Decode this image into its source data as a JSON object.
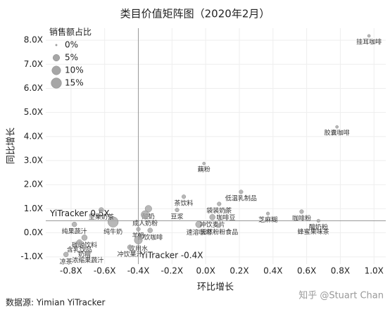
{
  "chart_data": {
    "type": "scatter",
    "title": "类目价值矩阵图（2020年2月）",
    "x_label": "环比增长",
    "y_label": "同比增长",
    "source": "数据源: Yimian YiTracker",
    "watermark": "知乎 @Stuart Chan",
    "xlim": [
      -0.95,
      1.07
    ],
    "ylim": [
      -1.3,
      8.5
    ],
    "xticks": [
      {
        "value": -0.8,
        "label": "-0.8X"
      },
      {
        "value": -0.6,
        "label": "-0.6X"
      },
      {
        "value": -0.4,
        "label": "-0.4X"
      },
      {
        "value": -0.2,
        "label": "-0.2X"
      },
      {
        "value": 0,
        "label": "0.0X"
      },
      {
        "value": 0.2,
        "label": "0.2X"
      },
      {
        "value": 0.4,
        "label": "0.4X"
      },
      {
        "value": 0.6,
        "label": "0.6X"
      },
      {
        "value": 0.8,
        "label": "0.8X"
      },
      {
        "value": 1,
        "label": "1.0X"
      }
    ],
    "yticks": [
      {
        "value": -1,
        "label": "-1.0X"
      },
      {
        "value": 0,
        "label": "0.0X"
      },
      {
        "value": 1,
        "label": "1.0X"
      },
      {
        "value": 2,
        "label": "2.0X"
      },
      {
        "value": 3,
        "label": "3.0X"
      },
      {
        "value": 4,
        "label": "4.0X"
      },
      {
        "value": 5,
        "label": "5.0X"
      },
      {
        "value": 6,
        "label": "6.0X"
      },
      {
        "value": 7,
        "label": "7.0X"
      },
      {
        "value": 8,
        "label": "8.0X"
      }
    ],
    "grid": true,
    "color": "#a6a6a6",
    "size_legend": {
      "title": "销售额占比",
      "sizes": [
        {
          "value": 0,
          "label": "0%"
        },
        {
          "value": 5,
          "label": "5%"
        },
        {
          "value": 10,
          "label": "10%"
        },
        {
          "value": 15,
          "label": "15%"
        }
      ]
    },
    "reference_lines": [
      {
        "axis": "x",
        "value": -0.4,
        "label": "YiTracker -0.4X"
      },
      {
        "axis": "y",
        "value": 0.5,
        "label": "YiTracker 0.5X"
      }
    ],
    "points": [
      {
        "label": "挂耳咖啡",
        "x": 0.97,
        "y": 8.18,
        "size": 0.3
      },
      {
        "label": "胶囊咖啡",
        "x": 0.78,
        "y": 4.4,
        "size": 0.3
      },
      {
        "label": "藕粉",
        "x": -0.01,
        "y": 2.88,
        "size": 0.3
      },
      {
        "label": "低温乳制品",
        "x": 0.21,
        "y": 1.7,
        "size": 1
      },
      {
        "label": "茶饮料",
        "x": -0.13,
        "y": 1.5,
        "size": 1
      },
      {
        "label": "袋装奶茶",
        "x": 0.08,
        "y": 1.2,
        "size": 1
      },
      {
        "label": "芝麻糊",
        "x": 0.37,
        "y": 0.8,
        "size": 0.5
      },
      {
        "label": "咖啡粉",
        "x": 0.57,
        "y": 0.88,
        "size": 1
      },
      {
        "label": "酸奶粉",
        "x": 0.67,
        "y": 0.5,
        "size": 0.5
      },
      {
        "label": "蜂蜜果味茶",
        "x": 0.64,
        "y": 0.3,
        "size": 0.5
      },
      {
        "label": "速溶咖啡",
        "x": -0.04,
        "y": 0.35,
        "size": 5
      },
      {
        "label": "冲饮麦片",
        "x": 0.04,
        "y": 0.65,
        "size": 3
      },
      {
        "label": "咖啡豆",
        "x": 0.12,
        "y": 0.9,
        "size": 1
      },
      {
        "label": "天然粉粉食品",
        "x": 0.08,
        "y": 0.3,
        "size": 1
      },
      {
        "label": "豆浆",
        "x": -0.17,
        "y": 0.95,
        "size": 1
      },
      {
        "label": "酸奶",
        "x": -0.34,
        "y": 1.0,
        "size": 5
      },
      {
        "label": "成人奶粉",
        "x": -0.36,
        "y": 0.75,
        "size": 8
      },
      {
        "label": "即饮咖啡",
        "x": -0.33,
        "y": 0.1,
        "size": 2
      },
      {
        "label": "羊奶",
        "x": -0.4,
        "y": 0.15,
        "size": 1
      },
      {
        "label": "饮用水",
        "x": -0.4,
        "y": -0.3,
        "size": 8
      },
      {
        "label": "冲饮果汁",
        "x": -0.45,
        "y": -0.6,
        "size": 2
      },
      {
        "label": "纯牛奶",
        "x": -0.55,
        "y": 0.45,
        "size": 15
      },
      {
        "label": "纯果蔬汁",
        "x": -0.78,
        "y": 0.35,
        "size": 2
      },
      {
        "label": "坚果奶茶",
        "x": -0.62,
        "y": 0.95,
        "size": 2
      },
      {
        "label": "碳酸饮料",
        "x": -0.72,
        "y": -0.2,
        "size": 3
      },
      {
        "label": "含乳饮品",
        "x": -0.75,
        "y": -0.4,
        "size": 3
      },
      {
        "label": "奶精",
        "x": -0.72,
        "y": -0.6,
        "size": 2
      },
      {
        "label": "浓缩果蔬汁",
        "x": -0.7,
        "y": -0.85,
        "size": 2
      },
      {
        "label": "凉茶",
        "x": -0.83,
        "y": -0.9,
        "size": 2
      }
    ]
  }
}
